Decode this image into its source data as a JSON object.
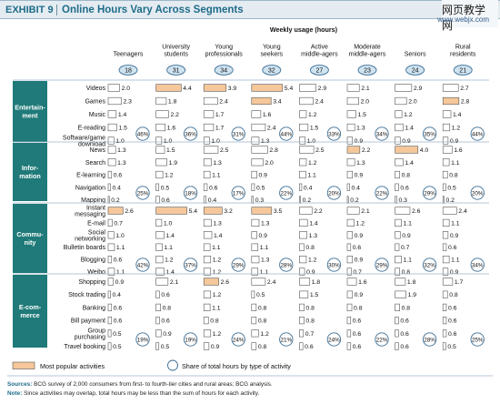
{
  "exhibit": {
    "label": "EXHIBIT 9",
    "title": "Online Hours Vary Across Segments"
  },
  "watermark": {
    "line1": "网页教学网",
    "line2": "www.webjx.com"
  },
  "colors": {
    "bar": "#ffffff",
    "highlight": "#f5c79a",
    "section_fill": "#1f7a79",
    "ring_fill": "#cfe3f0",
    "ring_stroke": "#3d6f96",
    "gridline": "#9bb3c7"
  },
  "chart_data": {
    "type": "bar",
    "subtitle": "Weekly usage (hours)",
    "segments": [
      "Teenagers",
      "University\nstudents",
      "Young\nprofessionals",
      "Young\nseekers",
      "Active\nmiddle-agers",
      "Moderate\nmiddle-agers",
      "Seniors",
      "Rural\nresidents"
    ],
    "segment_totals": [
      "18",
      "31",
      "34",
      "32",
      "27",
      "23",
      "24",
      "21"
    ],
    "max_value": 5.4,
    "groups": [
      {
        "name": "Entertain-\nment",
        "activities": [
          "Videos",
          "Games",
          "Music",
          "E-reading",
          "Software/game\ndownload"
        ],
        "values": [
          [
            2.0,
            4.4,
            3.9,
            5.4,
            2.9,
            2.1,
            2.9,
            2.7
          ],
          [
            2.3,
            1.8,
            2.4,
            3.4,
            2.4,
            2.0,
            2.0,
            2.8
          ],
          [
            1.4,
            2.2,
            1.7,
            1.6,
            1.2,
            1.5,
            1.2,
            1.4
          ],
          [
            1.5,
            1.6,
            1.7,
            2.4,
            1.5,
            1.3,
            1.4,
            1.2
          ],
          [
            1.0,
            1.0,
            1.0,
            1.3,
            1.0,
            0.9,
            0.9,
            0.9
          ]
        ],
        "shares": [
          "46%",
          "36%",
          "31%",
          "44%",
          "33%",
          "34%",
          "35%",
          "44%"
        ]
      },
      {
        "name": "Infor-\nmation",
        "activities": [
          "News",
          "Search",
          "E-learning",
          "Navigation",
          "Mapping"
        ],
        "values": [
          [
            1.3,
            1.5,
            2.5,
            2.8,
            2.5,
            2.2,
            4.0,
            1.6
          ],
          [
            1.3,
            1.9,
            1.3,
            2.0,
            1.2,
            1.3,
            1.4,
            1.1
          ],
          [
            0.6,
            1.2,
            1.1,
            0.9,
            1.1,
            0.9,
            0.8,
            0.8
          ],
          [
            0.4,
            0.5,
            0.6,
            0.5,
            0.4,
            0.4,
            0.6,
            0.5
          ],
          [
            0.2,
            0.6,
            0.4,
            0.3,
            0.2,
            0.2,
            0.3,
            0.2
          ]
        ],
        "shares": [
          "25%",
          "18%",
          "17%",
          "22%",
          "20%",
          "22%",
          "29%",
          "20%"
        ]
      },
      {
        "name": "Commu-\nnity",
        "activities": [
          "Instant\nmessaging",
          "E-mail",
          "Social\nnetworking",
          "Bulletin boards",
          "Blogging",
          "Weibo"
        ],
        "values": [
          [
            2.6,
            5.4,
            3.2,
            3.5,
            2.2,
            2.1,
            2.6,
            2.4
          ],
          [
            0.7,
            1.0,
            1.3,
            1.3,
            1.4,
            1.2,
            1.1,
            1.1
          ],
          [
            1.0,
            1.4,
            1.4,
            0.9,
            1.3,
            0.9,
            0.9,
            0.9
          ],
          [
            1.1,
            1.1,
            1.1,
            1.1,
            0.8,
            0.6,
            0.7,
            0.6
          ],
          [
            0.6,
            1.2,
            1.2,
            1.3,
            1.2,
            0.9,
            1.1,
            1.1
          ],
          [
            1.1,
            1.4,
            1.2,
            1.1,
            0.9,
            0.7,
            0.8,
            0.9
          ]
        ],
        "shares": [
          "42%",
          "37%",
          "29%",
          "28%",
          "30%",
          "29%",
          "32%",
          "34%"
        ]
      },
      {
        "name": "E-com-\nmerce",
        "activities": [
          "Shopping",
          "Stock trading",
          "Banking",
          "Bill payment",
          "Group\npurchasing",
          "Travel booking"
        ],
        "values": [
          [
            0.9,
            2.1,
            2.6,
            2.4,
            1.8,
            1.6,
            1.8,
            1.7
          ],
          [
            0.4,
            0.6,
            1.2,
            0.5,
            1.5,
            0.9,
            1.9,
            0.8
          ],
          [
            0.6,
            0.8,
            1.1,
            0.8,
            0.8,
            0.8,
            0.8,
            0.6
          ],
          [
            0.6,
            0.6,
            0.8,
            0.8,
            0.8,
            0.6,
            0.6,
            0.6
          ],
          [
            0.5,
            0.9,
            1.2,
            1.2,
            0.7,
            0.6,
            0.6,
            0.6
          ],
          [
            0.5,
            0.5,
            0.9,
            0.8,
            0.6,
            0.6,
            0.6,
            0.5
          ]
        ],
        "shares": [
          "19%",
          "19%",
          "24%",
          "21%",
          "24%",
          "22%",
          "28%",
          "25%"
        ]
      }
    ],
    "highlight": [
      [
        0,
        0,
        1
      ],
      [
        0,
        0,
        2
      ],
      [
        0,
        0,
        3
      ],
      [
        0,
        1,
        3
      ],
      [
        0,
        1,
        7
      ],
      [
        1,
        0,
        5
      ],
      [
        1,
        0,
        6
      ],
      [
        2,
        0,
        0
      ],
      [
        2,
        0,
        1
      ],
      [
        2,
        0,
        2
      ],
      [
        2,
        0,
        3
      ],
      [
        3,
        0,
        2
      ]
    ],
    "legend": {
      "popular": "Most popular activities",
      "share": "Share of total hours by type of activity"
    }
  },
  "footnote": {
    "sources_label": "Sources:",
    "sources_text": "BCG survey of 2,000 consumers from first- to fourth-tier cities and rural areas; BCG analysis.",
    "note_label": "Note:",
    "note_text": "Since activities may overlap, total hours may be less than the sum of hours for each activity."
  }
}
